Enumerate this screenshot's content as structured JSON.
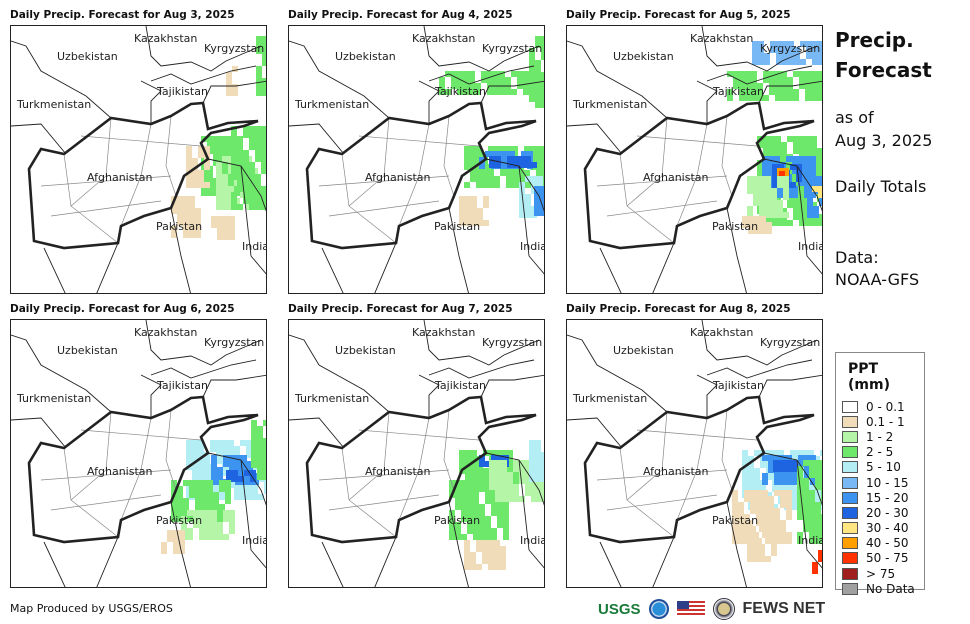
{
  "panels": [
    {
      "title": "Daily Precip. Forecast for Aug 3, 2025"
    },
    {
      "title": "Daily Precip. Forecast for Aug 4, 2025"
    },
    {
      "title": "Daily Precip. Forecast for Aug 5, 2025"
    },
    {
      "title": "Daily Precip. Forecast for Aug 6, 2025"
    },
    {
      "title": "Daily Precip. Forecast for Aug 7, 2025"
    },
    {
      "title": "Daily Precip. Forecast for Aug 8, 2025"
    }
  ],
  "countries": {
    "kazakhstan": "Kazakhstan",
    "kyrgyzstan": "Kyrgyzstan",
    "uzbekistan": "Uzbekistan",
    "tajikistan": "Tajikistan",
    "turkmenistan": "Turkmenistan",
    "afghanistan": "Afghanistan",
    "pakistan": "Pakistan",
    "india": "India"
  },
  "side": {
    "title1": "Precip.",
    "title2": "Forecast",
    "asof": "as of",
    "date": "Aug 3, 2025",
    "totals": "Daily Totals",
    "data_label": "Data:",
    "source": "NOAA-GFS"
  },
  "legend": {
    "title": "PPT (mm)",
    "items": [
      {
        "label": "0 - 0.1",
        "color": "#ffffff"
      },
      {
        "label": "0.1 - 1",
        "color": "#f0dcb8"
      },
      {
        "label": "1 - 2",
        "color": "#b4f5a8"
      },
      {
        "label": "2 - 5",
        "color": "#6ee86a"
      },
      {
        "label": "5 - 10",
        "color": "#b4eef5"
      },
      {
        "label": "10 - 15",
        "color": "#78b8f5"
      },
      {
        "label": "15 - 20",
        "color": "#3c94f0"
      },
      {
        "label": "20 - 30",
        "color": "#1e64e0"
      },
      {
        "label": "30 - 40",
        "color": "#ffe680"
      },
      {
        "label": "40 - 50",
        "color": "#ffa000"
      },
      {
        "label": "50 - 75",
        "color": "#ff3200"
      },
      {
        "label": "> 75",
        "color": "#a01e1e"
      },
      {
        "label": "No Data",
        "color": "#a0a0a0"
      }
    ]
  },
  "footer": {
    "credit": "Map Produced by USGS/EROS",
    "usgs": "USGS",
    "fews": "FEWS NET"
  }
}
